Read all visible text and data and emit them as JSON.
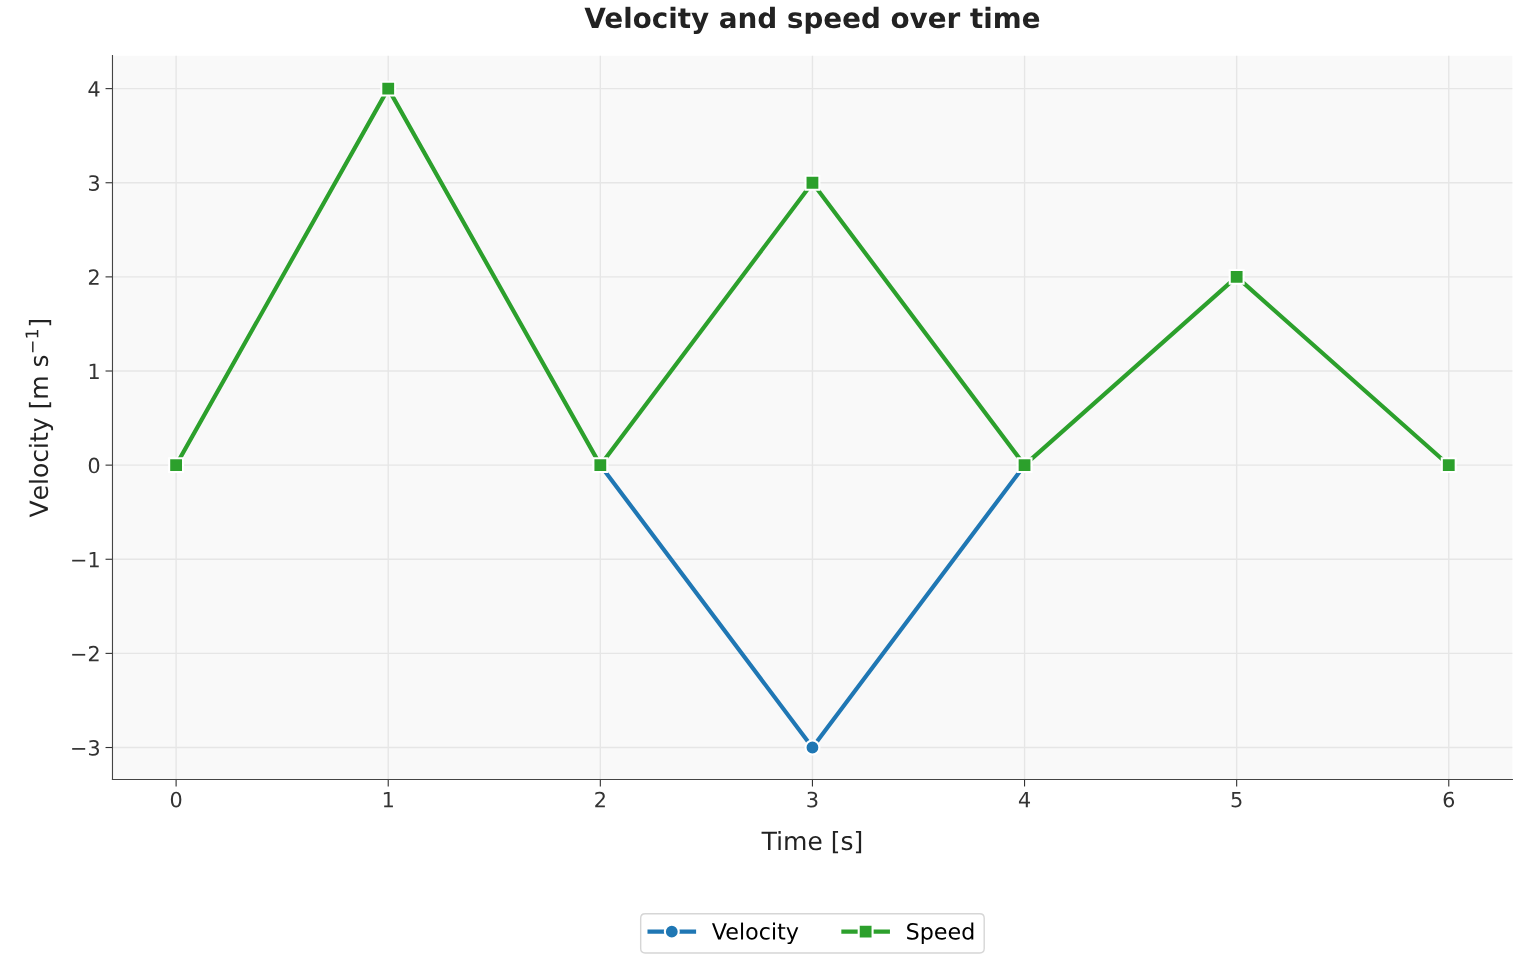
{
  "chart_data": {
    "type": "line",
    "title": "Velocity and speed over time",
    "xlabel": "Time [s]",
    "ylabel": "Velocity [m s$^{−1}$]",
    "x": [
      0,
      1,
      2,
      3,
      4,
      5,
      6
    ],
    "series": [
      {
        "name": "Velocity",
        "color": "#1f77b4",
        "marker": "circle",
        "values": [
          null,
          null,
          0,
          -3,
          0,
          null,
          null
        ]
      },
      {
        "name": "Speed",
        "color": "#2ca02c",
        "marker": "square",
        "values": [
          0,
          4,
          0,
          3,
          0,
          2,
          0
        ]
      }
    ],
    "xlim": [
      -0.3,
      6.3
    ],
    "xticks": [
      0,
      1,
      2,
      3,
      4,
      5,
      6
    ],
    "ylim": [
      -3.34,
      4.35
    ],
    "yticks": [
      {
        "value": -3,
        "label": "−3"
      },
      {
        "value": -2,
        "label": "−2"
      },
      {
        "value": -1,
        "label": "−1"
      },
      0,
      1,
      2,
      3,
      4
    ],
    "grid": true,
    "legend": "bottom",
    "line_style": "solid"
  }
}
